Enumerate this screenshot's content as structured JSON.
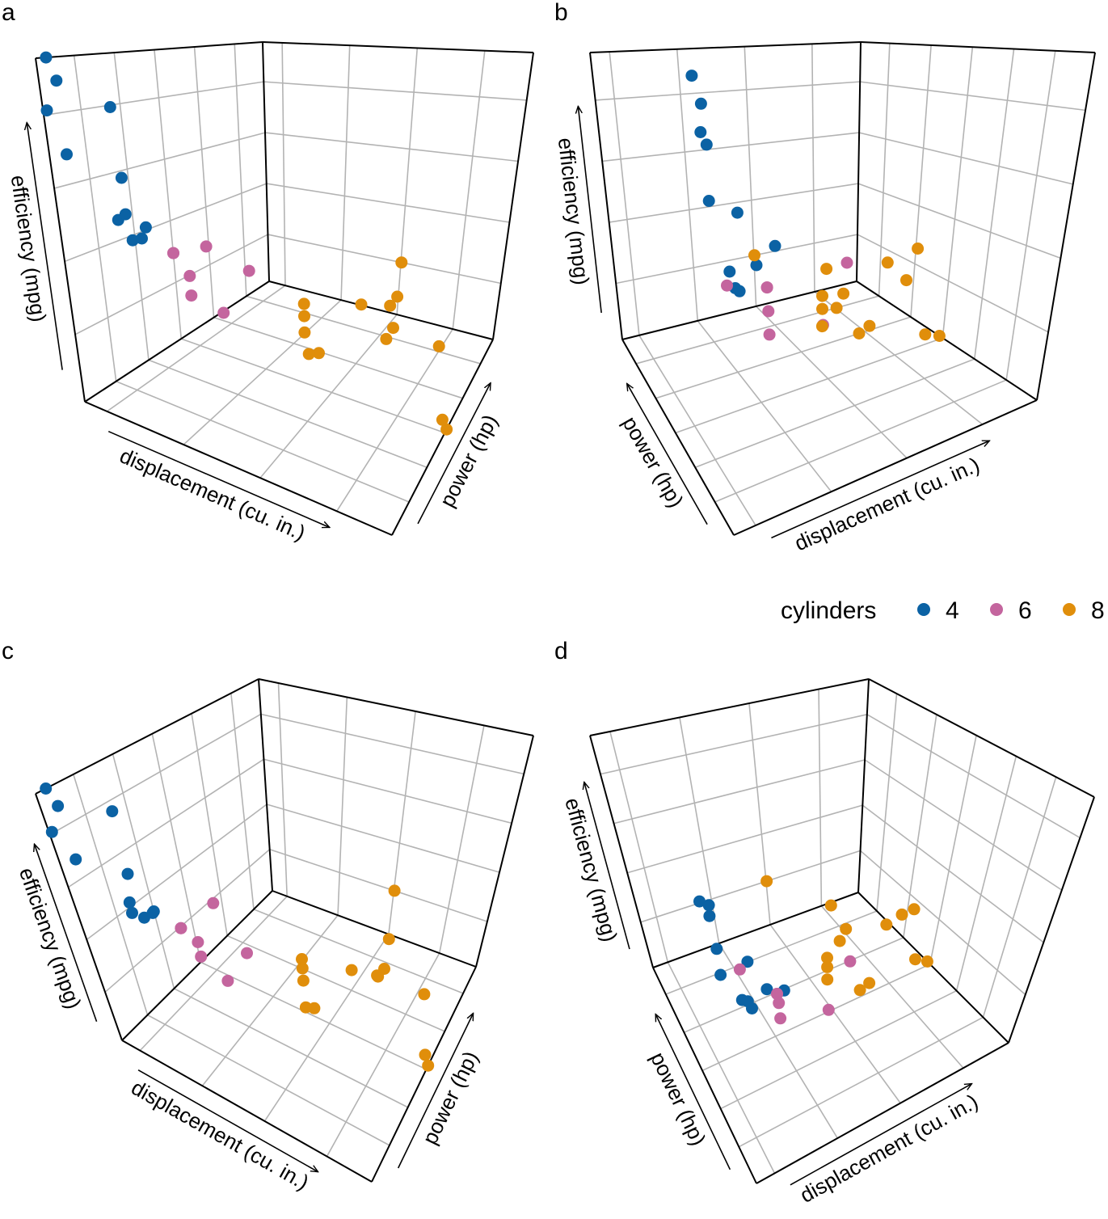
{
  "panels": [
    {
      "letter": "a"
    },
    {
      "letter": "b"
    },
    {
      "letter": "c"
    },
    {
      "letter": "d"
    }
  ],
  "legend": {
    "title": "cylinders",
    "items": [
      {
        "label": "4",
        "color": "#0b62a4"
      },
      {
        "label": "6",
        "color": "#c4659e"
      },
      {
        "label": "8",
        "color": "#e08e0b"
      }
    ]
  },
  "chart_data": {
    "type": "scatter",
    "projection": "3d",
    "views": [
      "a",
      "b",
      "c",
      "d"
    ],
    "xlabel": "displacement (cu. in.)",
    "ylabel": "power (hp)",
    "zlabel": "efficiency (mpg)",
    "xlim": [
      71.1,
      472
    ],
    "ylim": [
      52,
      335
    ],
    "zlim": [
      10.4,
      33.9
    ],
    "grid": true,
    "legend_position": "top-right",
    "series": [
      {
        "name": "4",
        "color": "#0b62a4",
        "points": [
          [
            108,
            93,
            22.8
          ],
          [
            146.7,
            62,
            24.4
          ],
          [
            140.8,
            95,
            22.8
          ],
          [
            78.7,
            66,
            32.4
          ],
          [
            75.7,
            52,
            30.4
          ],
          [
            71.1,
            65,
            33.9
          ],
          [
            120.1,
            97,
            21.5
          ],
          [
            79,
            66,
            27.3
          ],
          [
            120.3,
            91,
            26
          ],
          [
            95.1,
            113,
            30.4
          ],
          [
            121,
            109,
            21.4
          ]
        ]
      },
      {
        "name": "6",
        "color": "#c4659e",
        "points": [
          [
            160,
            110,
            21
          ],
          [
            160,
            110,
            21
          ],
          [
            258,
            110,
            21.4
          ],
          [
            225,
            105,
            18.1
          ],
          [
            167.6,
            123,
            19.2
          ],
          [
            167.6,
            123,
            17.8
          ],
          [
            145,
            175,
            19.7
          ]
        ]
      },
      {
        "name": "8",
        "color": "#e08e0b",
        "points": [
          [
            360,
            175,
            18.7
          ],
          [
            360,
            245,
            14.3
          ],
          [
            275.8,
            180,
            16.4
          ],
          [
            275.8,
            180,
            17.3
          ],
          [
            275.8,
            180,
            15.2
          ],
          [
            472,
            205,
            10.4
          ],
          [
            460,
            215,
            10.4
          ],
          [
            440,
            230,
            14.7
          ],
          [
            318,
            150,
            15.5
          ],
          [
            304,
            150,
            15.2
          ],
          [
            350,
            245,
            13.3
          ],
          [
            400,
            175,
            19.2
          ],
          [
            351,
            264,
            15.8
          ],
          [
            301,
            335,
            15
          ]
        ]
      }
    ]
  }
}
